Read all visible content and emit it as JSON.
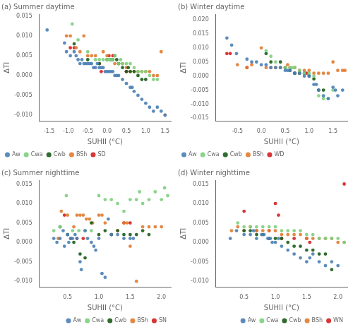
{
  "chart_data": [
    {
      "type": "scatter",
      "title": "(a) Summer daytime",
      "x_label": "SUHII (°C)",
      "y_label": "ΔTI",
      "xlim": [
        -1.75,
        1.65
      ],
      "ylim": [
        -0.0115,
        0.0155
      ],
      "xticks": [
        -1.5,
        {
          "value": -1.0,
          "label": "-1.0"
        },
        -0.5,
        {
          "value": 0.0,
          "label": "0.0"
        },
        0.5,
        {
          "value": 1.0,
          "label": "1.0"
        },
        1.5
      ],
      "yticks": [
        {
          "value": -0.01,
          "label": "-0.010"
        },
        -0.005,
        {
          "value": 0.0,
          "label": "0.000"
        },
        0.005,
        {
          "value": 0.01,
          "label": "0.010"
        },
        0.015
      ],
      "grid": false,
      "legend": "lower left",
      "series": [
        {
          "name": "Aw",
          "color": "#4a7fb5",
          "x": [
            -1.55,
            -1.1,
            -1.05,
            -0.95,
            -0.85,
            -0.8,
            -0.75,
            -0.7,
            -0.65,
            -0.6,
            -0.55,
            -0.5,
            -0.45,
            -0.4,
            -0.35,
            -0.3,
            -0.25,
            -0.2,
            -0.15,
            -0.1,
            -0.05,
            0.0,
            0.05,
            0.1,
            0.15,
            0.2,
            0.25,
            0.3,
            0.4,
            0.5,
            0.6,
            0.65,
            0.7,
            0.8,
            0.9,
            1.0,
            1.1,
            1.2,
            1.3,
            1.4,
            1.5
          ],
          "values": [
            0.0115,
            0.0082,
            0.006,
            0.005,
            0.006,
            0.005,
            0.004,
            0.003,
            0.004,
            0.003,
            0.003,
            0.003,
            0.003,
            0.003,
            0.002,
            0.002,
            0.003,
            0.002,
            0.002,
            0.002,
            0.001,
            0.001,
            0.001,
            0.001,
            0.001,
            0.0,
            0.0,
            0.0,
            -0.001,
            -0.002,
            -0.003,
            -0.003,
            -0.004,
            -0.005,
            -0.006,
            -0.007,
            -0.008,
            -0.009,
            -0.008,
            -0.009,
            -0.01
          ]
        },
        {
          "name": "Cwa",
          "color": "#7ecf7e",
          "x": [
            -0.9,
            -0.75,
            -0.5,
            -0.3,
            -0.2,
            -0.1,
            0.0,
            0.05,
            0.1,
            0.15,
            0.2,
            0.3,
            0.35,
            0.4,
            0.5,
            0.6,
            0.7,
            0.8,
            0.9,
            1.0,
            1.1,
            1.2,
            1.3
          ],
          "values": [
            0.013,
            0.009,
            0.006,
            0.004,
            0.004,
            0.004,
            0.004,
            0.004,
            0.004,
            0.004,
            0.005,
            0.003,
            0.004,
            0.003,
            0.003,
            0.003,
            0.002,
            0.001,
            0.001,
            0.001,
            0.0,
            -0.001,
            -0.001
          ]
        },
        {
          "name": "Cwb",
          "color": "#1a5c1a",
          "x": [
            -0.85,
            -0.5,
            -0.2,
            0.0,
            0.1,
            0.15,
            0.2,
            0.25,
            0.3,
            0.4,
            0.5,
            0.55,
            0.6,
            0.7,
            0.8,
            0.9,
            1.0
          ],
          "values": [
            0.008,
            0.004,
            0.003,
            0.004,
            0.004,
            0.004,
            0.005,
            0.004,
            0.003,
            0.002,
            0.001,
            0.002,
            0.001,
            0.001,
            0.0,
            -0.001,
            -0.001
          ]
        },
        {
          "name": "BSh",
          "color": "#e07b30",
          "x": [
            -1.05,
            -0.95,
            -0.8,
            -0.7,
            -0.6,
            -0.5,
            -0.4,
            -0.3,
            -0.2,
            -0.1,
            0.0,
            0.1,
            0.2,
            0.3,
            0.4,
            0.5,
            0.6,
            0.7,
            0.8,
            0.9,
            1.0,
            1.1,
            1.2,
            1.3,
            1.4,
            1.5
          ],
          "values": [
            0.01,
            0.01,
            0.007,
            0.006,
            0.01,
            0.005,
            0.005,
            0.005,
            0.003,
            0.006,
            0.005,
            0.004,
            0.003,
            0.003,
            0.003,
            0.002,
            0.001,
            0.001,
            0.001,
            0.001,
            0.001,
            0.001,
            0.0,
            0.0,
            0.006,
            -0.01
          ]
        },
        {
          "name": "SD",
          "color": "#d42020",
          "x": [
            -0.95,
            -0.85,
            -0.15,
            0.05,
            0.15,
            0.5
          ],
          "values": [
            0.007,
            0.007,
            0.001,
            0.005,
            0.005,
            0.001
          ]
        }
      ]
    },
    {
      "type": "scatter",
      "title": "(b) Winter daytime",
      "x_label": "SUHII (°C)",
      "y_label": "ΔTI",
      "xlim": [
        -0.95,
        1.8
      ],
      "ylim": [
        -0.016,
        0.022
      ],
      "xticks": [
        -0.5,
        {
          "value": 0.0,
          "label": "0.0"
        },
        0.5,
        {
          "value": 1.0,
          "label": "1.0"
        },
        1.5
      ],
      "yticks": [
        -0.015,
        {
          "value": -0.01,
          "label": "-0.010"
        },
        -0.005,
        {
          "value": 0.0,
          "label": "0.000"
        },
        0.005,
        {
          "value": 0.01,
          "label": "0.010"
        },
        0.015,
        {
          "value": 0.02,
          "label": "0.020"
        }
      ],
      "grid": false,
      "legend": "lower left",
      "series": [
        {
          "name": "Aw",
          "color": "#4a7fb5",
          "x": [
            -0.72,
            -0.62,
            -0.52,
            -0.3,
            -0.2,
            -0.1,
            0.0,
            0.1,
            0.2,
            0.3,
            0.4,
            0.5,
            0.55,
            0.6,
            0.7,
            0.8,
            0.9,
            1.0,
            1.1,
            1.15,
            1.2,
            1.3,
            1.4,
            1.5,
            1.55,
            1.6,
            1.7
          ],
          "values": [
            0.0135,
            0.011,
            0.008,
            0.006,
            0.005,
            0.005,
            0.004,
            0.004,
            0.003,
            0.003,
            0.003,
            0.002,
            0.002,
            0.002,
            0.001,
            0.001,
            0.0,
            0.0,
            -0.003,
            -0.003,
            -0.005,
            -0.007,
            -0.008,
            -0.004,
            -0.005,
            -0.007,
            -0.005
          ]
        },
        {
          "name": "Cwa",
          "color": "#7ecf7e",
          "x": [
            0.1,
            0.2,
            0.3,
            0.5,
            0.6,
            0.65,
            0.7,
            0.8,
            0.9,
            1.0,
            1.1,
            1.2,
            1.3,
            1.4,
            1.5
          ],
          "values": [
            0.009,
            0.007,
            0.005,
            0.003,
            0.003,
            0.003,
            0.003,
            0.002,
            0.001,
            0.001,
            0.0,
            -0.007,
            -0.008,
            -0.008,
            -0.005
          ]
        },
        {
          "name": "Cwb",
          "color": "#1a5c1a",
          "x": [
            0.1,
            0.2,
            0.4,
            0.5,
            0.6,
            0.7,
            0.8,
            0.9,
            1.0,
            1.1,
            1.2,
            1.3
          ],
          "values": [
            0.008,
            0.005,
            0.005,
            0.003,
            0.002,
            0.001,
            0.001,
            0.001,
            0.0,
            -0.001,
            -0.005,
            -0.005
          ]
        },
        {
          "name": "BSh",
          "color": "#e07b30",
          "x": [
            -0.5,
            -0.3,
            -0.2,
            0.0,
            0.1,
            0.2,
            0.3,
            0.4,
            0.5,
            0.55,
            0.6,
            0.7,
            0.8,
            0.9,
            1.0,
            1.1,
            1.2,
            1.3,
            1.4,
            1.5,
            1.6,
            1.7,
            1.75
          ],
          "values": [
            0.004,
            0.003,
            0.004,
            0.01,
            0.003,
            0.003,
            0.003,
            0.003,
            0.003,
            0.004,
            0.003,
            0.003,
            0.002,
            0.002,
            0.002,
            0.001,
            0.001,
            0.001,
            0.001,
            0.005,
            0.002,
            0.002,
            0.002
          ]
        },
        {
          "name": "WD",
          "color": "#d42020",
          "x": [
            -0.72,
            -0.65,
            -0.3,
            0.7,
            0.95
          ],
          "values": [
            0.008,
            0.008,
            0.003,
            0.001,
            0.001
          ]
        }
      ]
    },
    {
      "type": "scatter",
      "title": "(c) Summer nighttime",
      "x_label": "SUHII (°C)",
      "y_label": "ΔTI",
      "xlim": [
        0.05,
        2.15
      ],
      "ylim": [
        -0.0115,
        0.016
      ],
      "xticks": [
        0.5,
        {
          "value": 1.0,
          "label": "1.0"
        },
        1.5,
        {
          "value": 2.0,
          "label": "2.0"
        }
      ],
      "yticks": [
        {
          "value": -0.01,
          "label": "-0.010"
        },
        -0.005,
        {
          "value": 0.0,
          "label": "0.000"
        },
        0.005,
        {
          "value": 0.01,
          "label": "0.010"
        },
        0.015
      ],
      "grid": false,
      "legend": "lower right",
      "series": [
        {
          "name": "Aw",
          "color": "#4a7fb5",
          "x": [
            0.28,
            0.33,
            0.38,
            0.43,
            0.45,
            0.5,
            0.52,
            0.55,
            0.58,
            0.62,
            0.65,
            0.7,
            0.72,
            0.78,
            0.82,
            0.88,
            0.92,
            0.95,
            1.0,
            1.05,
            1.1,
            1.15,
            1.2,
            1.3,
            1.4,
            1.5,
            1.55
          ],
          "values": [
            0.001,
            0.0,
            0.001,
            0.003,
            -0.001,
            0.002,
            0.0,
            0.001,
            0.001,
            0.002,
            0.001,
            -0.005,
            -0.007,
            0.003,
            0.001,
            0.0,
            -0.001,
            -0.002,
            0.001,
            -0.008,
            -0.009,
            0.006,
            0.002,
            0.002,
            0.001,
            0.001,
            0.001
          ]
        },
        {
          "name": "Cwa",
          "color": "#7ecf7e",
          "x": [
            0.28,
            0.38,
            0.48,
            0.58,
            0.68,
            0.78,
            0.88,
            1.0,
            1.1,
            1.2,
            1.3,
            1.4,
            1.5,
            1.6,
            1.65,
            1.7,
            1.8,
            1.9,
            2.0,
            2.05,
            2.1
          ],
          "values": [
            0.003,
            0.004,
            0.012,
            0.003,
            0.003,
            0.003,
            0.003,
            0.012,
            0.011,
            0.011,
            0.01,
            0.008,
            0.011,
            0.011,
            0.013,
            0.01,
            0.011,
            0.013,
            0.011,
            0.014,
            0.012
          ]
        },
        {
          "name": "Cwb",
          "color": "#1a5c1a",
          "x": [
            0.38,
            0.5,
            0.6,
            0.7,
            0.78,
            0.88,
            1.0,
            1.1,
            1.2,
            1.3,
            1.4,
            1.5,
            1.6,
            1.7,
            1.8
          ],
          "values": [
            0.004,
            0.002,
            0.0,
            -0.003,
            -0.004,
            0.005,
            0.002,
            0.003,
            0.002,
            0.003,
            0.002,
            0.002,
            0.002,
            0.003,
            0.002
          ]
        },
        {
          "name": "BSh",
          "color": "#e07b30",
          "x": [
            0.35,
            0.4,
            0.5,
            0.6,
            0.65,
            0.7,
            0.75,
            0.8,
            0.85,
            0.9,
            1.0,
            1.05,
            1.1,
            1.2,
            1.3,
            1.4,
            1.45,
            1.5,
            1.6,
            1.7,
            1.8,
            1.9,
            2.0
          ],
          "values": [
            0.001,
            0.008,
            0.007,
            0.004,
            0.007,
            0.007,
            0.007,
            0.006,
            0.006,
            0.005,
            0.007,
            0.007,
            0.005,
            0.002,
            0.003,
            0.005,
            0.005,
            -0.001,
            -0.01,
            0.004,
            0.004,
            0.004,
            0.004
          ]
        },
        {
          "name": "SN",
          "color": "#d42020",
          "x": [
            0.45,
            0.55,
            0.65,
            0.75,
            1.4,
            1.5
          ],
          "values": [
            0.007,
            0.001,
            0.001,
            0.001,
            0.005,
            0.005
          ]
        }
      ]
    },
    {
      "type": "scatter",
      "title": "(d) Winter nighttime",
      "x_label": "SUHII (°C)",
      "y_label": "ΔTI",
      "xlim": [
        0.05,
        2.15
      ],
      "ylim": [
        -0.0115,
        0.016
      ],
      "xticks": [
        0.5,
        {
          "value": 1.0,
          "label": "1.0"
        },
        1.5,
        {
          "value": 2.0,
          "label": "2.0"
        }
      ],
      "yticks": [
        {
          "value": -0.01,
          "label": "-0.010"
        },
        -0.005,
        {
          "value": 0.0,
          "label": "0.000"
        },
        0.005,
        {
          "value": 0.01,
          "label": "0.010"
        },
        0.015
      ],
      "grid": false,
      "legend": "lower right",
      "series": [
        {
          "name": "Aw",
          "color": "#4a7fb5",
          "x": [
            0.28,
            0.38,
            0.5,
            0.6,
            0.65,
            0.7,
            0.78,
            0.82,
            0.88,
            0.92,
            0.95,
            1.0,
            1.05,
            1.1,
            1.2,
            1.3,
            1.4,
            1.5,
            1.55,
            1.6,
            1.7,
            1.8,
            1.9,
            2.0
          ],
          "values": [
            0.001,
            0.003,
            0.002,
            0.002,
            0.003,
            0.001,
            0.002,
            0.002,
            0.001,
            0.001,
            0.0,
            0.0,
            0.001,
            -0.001,
            -0.002,
            -0.003,
            -0.004,
            -0.005,
            -0.004,
            -0.003,
            -0.005,
            -0.006,
            -0.005,
            -0.006
          ]
        },
        {
          "name": "Cwa",
          "color": "#7ecf7e",
          "x": [
            0.4,
            0.5,
            0.6,
            0.7,
            0.8,
            0.9,
            1.0,
            1.1,
            1.2,
            1.3,
            1.4,
            1.5,
            1.6,
            1.7,
            1.8,
            1.9,
            2.0,
            2.1
          ],
          "values": [
            0.005,
            0.004,
            0.004,
            0.004,
            0.004,
            0.004,
            0.004,
            0.003,
            0.003,
            0.003,
            0.003,
            0.002,
            0.002,
            0.001,
            0.001,
            0.001,
            0.001,
            0.0
          ]
        },
        {
          "name": "Cwb",
          "color": "#1a5c1a",
          "x": [
            0.5,
            0.6,
            0.7,
            0.8,
            0.9,
            1.0,
            1.1,
            1.2,
            1.3,
            1.4,
            1.5,
            1.6,
            1.7,
            1.8,
            1.9
          ],
          "values": [
            0.003,
            0.003,
            0.002,
            0.002,
            0.001,
            0.001,
            0.001,
            0.0,
            -0.001,
            -0.001,
            -0.002,
            -0.002,
            -0.003,
            -0.003,
            -0.007
          ]
        },
        {
          "name": "BSh",
          "color": "#e07b30",
          "x": [
            0.3,
            0.4,
            0.5,
            0.6,
            0.7,
            0.8,
            0.9,
            1.0,
            1.1,
            1.2,
            1.3,
            1.4,
            1.5,
            1.6,
            1.7,
            1.8,
            1.9,
            2.0,
            2.1
          ],
          "values": [
            0.003,
            0.004,
            0.003,
            0.004,
            0.003,
            0.003,
            0.003,
            0.003,
            0.002,
            0.002,
            0.002,
            0.002,
            0.001,
            0.001,
            0.001,
            0.001,
            0.001,
            0.0,
            0.0
          ]
        },
        {
          "name": "WN",
          "color": "#d42020",
          "x": [
            0.5,
            0.7,
            0.9,
            1.0,
            1.05,
            1.1,
            1.3,
            1.5,
            1.55,
            2.1
          ],
          "values": [
            0.008,
            0.003,
            0.003,
            0.01,
            0.007,
            0.001,
            0.001,
            0.001,
            0.0,
            0.015
          ]
        }
      ]
    }
  ]
}
